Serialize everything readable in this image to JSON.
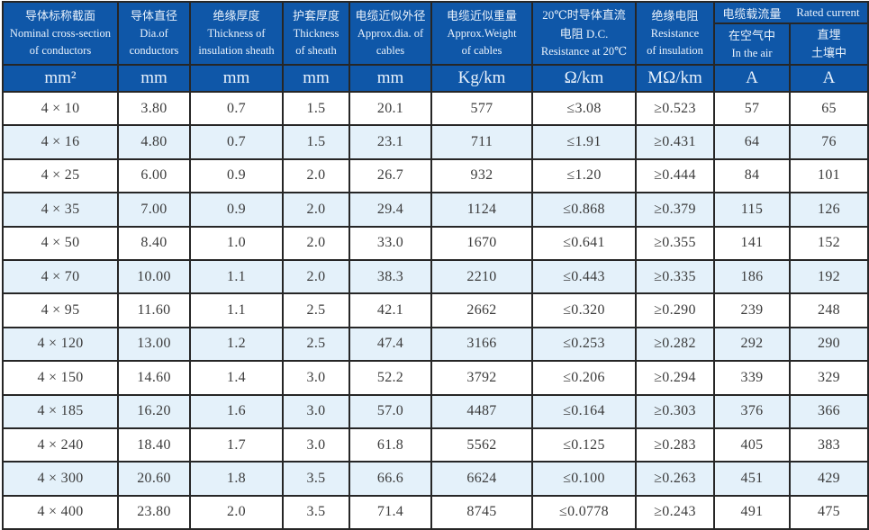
{
  "colors": {
    "header_bg": "#0f57a8",
    "header_text": "#e9f2fc",
    "row_bg": "#ffffff",
    "row_alt_bg": "#e4f1fa",
    "grid_border": "#262626",
    "body_text": "#3c3c3c"
  },
  "header": {
    "columns": [
      {
        "zh": "导体标称截面",
        "en1": "Nominal cross-section",
        "en2": "of conductors"
      },
      {
        "zh": "导体直径",
        "en1": "Dia.of",
        "en2": "conductors"
      },
      {
        "zh": "绝缘厚度",
        "en1": "Thickness of",
        "en2": "insulation sheath"
      },
      {
        "zh": "护套厚度",
        "en1": "Thickness",
        "en2": "of sheath"
      },
      {
        "zh": "电缆近似外径",
        "en1": "Approx.dia. of",
        "en2": "cables"
      },
      {
        "zh": "电缆近似重量",
        "en1": "Approx.Weight",
        "en2": "of cables"
      },
      {
        "zh": "20℃时导体直流",
        "en1": "电阻 D.C.",
        "en2": "Resistance at 20℃"
      },
      {
        "zh": "绝缘电阻",
        "en1": "Resistance",
        "en2": "of insulation"
      }
    ],
    "rated_current": {
      "zh": "电缆载流量",
      "en": "Rated current",
      "sub": [
        {
          "line1": "在空气中",
          "line2": "In the air"
        },
        {
          "line1": "直埋",
          "line2": "土壤中"
        }
      ]
    },
    "units": [
      "mm²",
      "mm",
      "mm",
      "mm",
      "mm",
      "Kg/km",
      "Ω/km",
      "MΩ/km",
      "A",
      "A"
    ]
  },
  "rows": [
    [
      "4 × 10",
      "3.80",
      "0.7",
      "1.5",
      "20.1",
      "577",
      "≤3.08",
      "≥0.523",
      "57",
      "65"
    ],
    [
      "4 × 16",
      "4.80",
      "0.7",
      "1.5",
      "23.1",
      "711",
      "≤1.91",
      "≥0.431",
      "64",
      "76"
    ],
    [
      "4 × 25",
      "6.00",
      "0.9",
      "2.0",
      "26.7",
      "932",
      "≤1.20",
      "≥0.444",
      "84",
      "101"
    ],
    [
      "4 × 35",
      "7.00",
      "0.9",
      "2.0",
      "29.4",
      "1124",
      "≤0.868",
      "≥0.379",
      "115",
      "126"
    ],
    [
      "4 × 50",
      "8.40",
      "1.0",
      "2.0",
      "33.0",
      "1670",
      "≤0.641",
      "≥0.355",
      "141",
      "152"
    ],
    [
      "4 × 70",
      "10.00",
      "1.1",
      "2.0",
      "38.3",
      "2210",
      "≤0.443",
      "≥0.335",
      "186",
      "192"
    ],
    [
      "4 × 95",
      "11.60",
      "1.1",
      "2.5",
      "42.1",
      "2662",
      "≤0.320",
      "≥0.290",
      "239",
      "248"
    ],
    [
      "4 × 120",
      "13.00",
      "1.2",
      "2.5",
      "47.4",
      "3166",
      "≤0.253",
      "≥0.282",
      "292",
      "290"
    ],
    [
      "4 × 150",
      "14.60",
      "1.4",
      "3.0",
      "52.2",
      "3792",
      "≤0.206",
      "≥0.294",
      "339",
      "329"
    ],
    [
      "4 × 185",
      "16.20",
      "1.6",
      "3.0",
      "57.0",
      "4487",
      "≤0.164",
      "≥0.303",
      "376",
      "366"
    ],
    [
      "4 × 240",
      "18.40",
      "1.7",
      "3.0",
      "61.8",
      "5562",
      "≤0.125",
      "≥0.283",
      "405",
      "383"
    ],
    [
      "4 × 300",
      "20.60",
      "1.8",
      "3.5",
      "66.6",
      "6624",
      "≤0.100",
      "≥0.263",
      "451",
      "429"
    ],
    [
      "4 × 400",
      "23.80",
      "2.0",
      "3.5",
      "71.4",
      "8745",
      "≤0.0778",
      "≥0.243",
      "491",
      "475"
    ]
  ]
}
